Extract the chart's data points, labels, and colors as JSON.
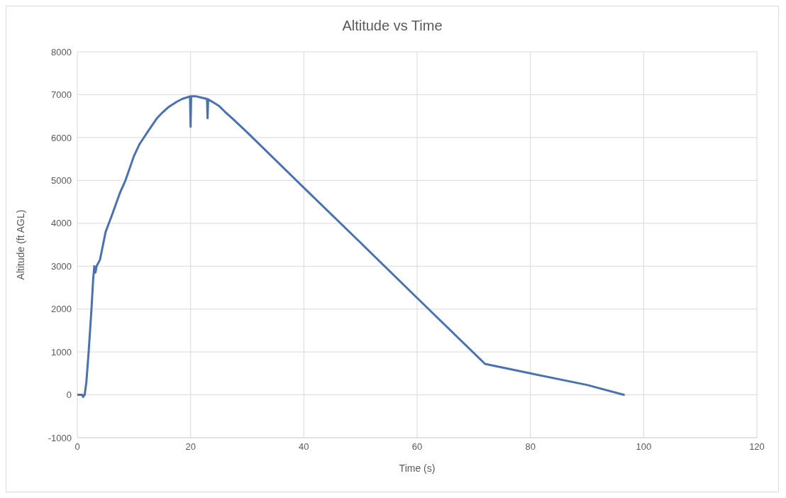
{
  "chart_data": {
    "type": "line",
    "title": "Altitude vs Time",
    "xlabel": "Time (s)",
    "ylabel": "Altitude (ft AGL)",
    "xlim": [
      0,
      120
    ],
    "xticks": [
      0,
      20,
      40,
      60,
      80,
      100,
      120
    ],
    "ylim": [
      -1000,
      8000
    ],
    "yticks": [
      -1000,
      0,
      1000,
      2000,
      3000,
      4000,
      5000,
      6000,
      7000,
      8000
    ],
    "grid": true,
    "line_style": "solid",
    "series": [
      {
        "color": "#4a72b0",
        "x": [
          0,
          0.9,
          1.0,
          1.3,
          1.6,
          2.0,
          2.5,
          2.8,
          3.0,
          3.2,
          3.4,
          4.0,
          5.0,
          6.0,
          7.5,
          8.5,
          10,
          11,
          12.5,
          14,
          15,
          16,
          17.5,
          18.5,
          19.9,
          20,
          20.1,
          21,
          22,
          22.9,
          23,
          23.1,
          24,
          25,
          26,
          27.5,
          28,
          30,
          40,
          50,
          60,
          72,
          80,
          90,
          96.5
        ],
        "values": [
          0,
          0,
          -50,
          0,
          300,
          1000,
          2000,
          2700,
          3000,
          2850,
          3000,
          3150,
          3800,
          4150,
          4700,
          5000,
          5570,
          5850,
          6150,
          6440,
          6580,
          6700,
          6830,
          6900,
          6960,
          6250,
          6960,
          6960,
          6930,
          6900,
          6450,
          6890,
          6820,
          6740,
          6610,
          6430,
          6370,
          6120,
          4830,
          3550,
          2260,
          720,
          500,
          230,
          0
        ]
      }
    ]
  }
}
